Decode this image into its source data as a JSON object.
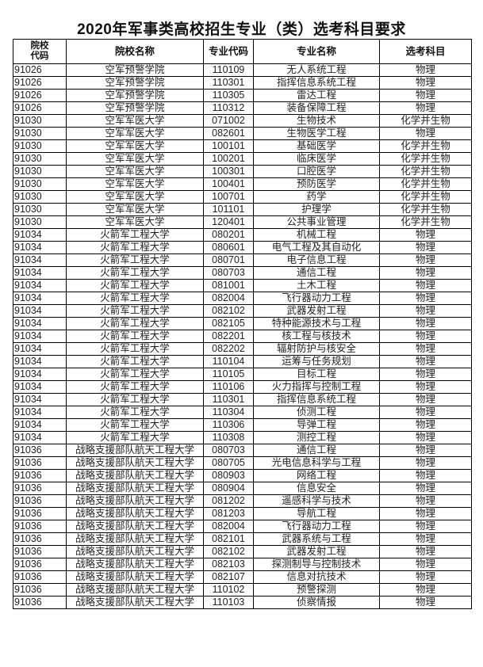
{
  "title": "2020年军事类高校招生专业（类）选考科目要求",
  "table": {
    "headers": [
      "院校代码",
      "院校名称",
      "专业代码",
      "专业名称",
      "选考科目"
    ],
    "rows": [
      [
        "91026",
        "空军预警学院",
        "110109",
        "无人系统工程",
        "物理"
      ],
      [
        "91026",
        "空军预警学院",
        "110301",
        "指挥信息系统工程",
        "物理"
      ],
      [
        "91026",
        "空军预警学院",
        "110305",
        "雷达工程",
        "物理"
      ],
      [
        "91026",
        "空军预警学院",
        "110312",
        "装备保障工程",
        "物理"
      ],
      [
        "91030",
        "空军军医大学",
        "071002",
        "生物技术",
        "化学并生物"
      ],
      [
        "91030",
        "空军军医大学",
        "082601",
        "生物医学工程",
        "物理"
      ],
      [
        "91030",
        "空军军医大学",
        "100101",
        "基础医学",
        "化学并生物"
      ],
      [
        "91030",
        "空军军医大学",
        "100201",
        "临床医学",
        "化学并生物"
      ],
      [
        "91030",
        "空军军医大学",
        "100301",
        "口腔医学",
        "化学并生物"
      ],
      [
        "91030",
        "空军军医大学",
        "100401",
        "预防医学",
        "化学并生物"
      ],
      [
        "91030",
        "空军军医大学",
        "100701",
        "药学",
        "化学并生物"
      ],
      [
        "91030",
        "空军军医大学",
        "101101",
        "护理学",
        "化学并生物"
      ],
      [
        "91030",
        "空军军医大学",
        "120401",
        "公共事业管理",
        "化学并生物"
      ],
      [
        "91034",
        "火箭军工程大学",
        "080201",
        "机械工程",
        "物理"
      ],
      [
        "91034",
        "火箭军工程大学",
        "080601",
        "电气工程及其自动化",
        "物理"
      ],
      [
        "91034",
        "火箭军工程大学",
        "080701",
        "电子信息工程",
        "物理"
      ],
      [
        "91034",
        "火箭军工程大学",
        "080703",
        "通信工程",
        "物理"
      ],
      [
        "91034",
        "火箭军工程大学",
        "081001",
        "土木工程",
        "物理"
      ],
      [
        "91034",
        "火箭军工程大学",
        "082004",
        "飞行器动力工程",
        "物理"
      ],
      [
        "91034",
        "火箭军工程大学",
        "082102",
        "武器发射工程",
        "物理"
      ],
      [
        "91034",
        "火箭军工程大学",
        "082105",
        "特种能源技术与工程",
        "物理"
      ],
      [
        "91034",
        "火箭军工程大学",
        "082201",
        "核工程与核技术",
        "物理"
      ],
      [
        "91034",
        "火箭军工程大学",
        "082202",
        "辐射防护与核安全",
        "物理"
      ],
      [
        "91034",
        "火箭军工程大学",
        "110104",
        "运筹与任务规划",
        "物理"
      ],
      [
        "91034",
        "火箭军工程大学",
        "110105",
        "目标工程",
        "物理"
      ],
      [
        "91034",
        "火箭军工程大学",
        "110106",
        "火力指挥与控制工程",
        "物理"
      ],
      [
        "91034",
        "火箭军工程大学",
        "110301",
        "指挥信息系统工程",
        "物理"
      ],
      [
        "91034",
        "火箭军工程大学",
        "110304",
        "侦测工程",
        "物理"
      ],
      [
        "91034",
        "火箭军工程大学",
        "110306",
        "导弹工程",
        "物理"
      ],
      [
        "91034",
        "火箭军工程大学",
        "110308",
        "测控工程",
        "物理"
      ],
      [
        "91036",
        "战略支援部队航天工程大学",
        "080703",
        "通信工程",
        "物理"
      ],
      [
        "91036",
        "战略支援部队航天工程大学",
        "080705",
        "光电信息科学与工程",
        "物理"
      ],
      [
        "91036",
        "战略支援部队航天工程大学",
        "080903",
        "网络工程",
        "物理"
      ],
      [
        "91036",
        "战略支援部队航天工程大学",
        "080904",
        "信息安全",
        "物理"
      ],
      [
        "91036",
        "战略支援部队航天工程大学",
        "081202",
        "遥感科学与技术",
        "物理"
      ],
      [
        "91036",
        "战略支援部队航天工程大学",
        "081203",
        "导航工程",
        "物理"
      ],
      [
        "91036",
        "战略支援部队航天工程大学",
        "082004",
        "飞行器动力工程",
        "物理"
      ],
      [
        "91036",
        "战略支援部队航天工程大学",
        "082101",
        "武器系统与工程",
        "物理"
      ],
      [
        "91036",
        "战略支援部队航天工程大学",
        "082102",
        "武器发射工程",
        "物理"
      ],
      [
        "91036",
        "战略支援部队航天工程大学",
        "082103",
        "探测制导与控制技术",
        "物理"
      ],
      [
        "91036",
        "战略支援部队航天工程大学",
        "082107",
        "信息对抗技术",
        "物理"
      ],
      [
        "91036",
        "战略支援部队航天工程大学",
        "110102",
        "预警探测",
        "物理"
      ],
      [
        "91036",
        "战略支援部队航天工程大学",
        "110103",
        "侦察情报",
        "物理"
      ]
    ]
  }
}
